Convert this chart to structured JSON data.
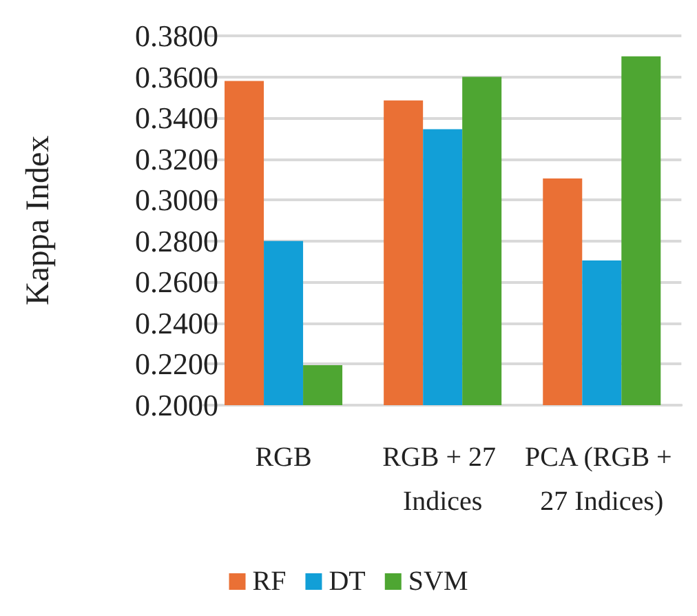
{
  "chart_data": {
    "type": "bar",
    "ylabel": "Kappa Index",
    "categories": [
      "RGB",
      "RGB + 27 Indices",
      "PCA (RGB + 27 Indices)"
    ],
    "series": [
      {
        "name": "RF",
        "color": "#ea7035",
        "values": [
          0.358,
          0.3485,
          0.3105
        ]
      },
      {
        "name": "DT",
        "color": "#129fd7",
        "values": [
          0.28,
          0.3345,
          0.2705
        ]
      },
      {
        "name": "SVM",
        "color": "#4ea632",
        "values": [
          0.2195,
          0.36,
          0.37
        ]
      }
    ],
    "ylim": [
      0.2,
      0.38
    ],
    "yticks": [
      {
        "value": 0.2,
        "label": "0.2000"
      },
      {
        "value": 0.22,
        "label": "0.2200"
      },
      {
        "value": 0.24,
        "label": "0.2400"
      },
      {
        "value": 0.26,
        "label": "0.2600"
      },
      {
        "value": 0.28,
        "label": "0.2800"
      },
      {
        "value": 0.3,
        "label": "0.3000"
      },
      {
        "value": 0.32,
        "label": "0.3200"
      },
      {
        "value": 0.34,
        "label": "0.3400"
      },
      {
        "value": 0.36,
        "label": "0.3600"
      },
      {
        "value": 0.38,
        "label": "0.3800"
      }
    ],
    "grid": "y",
    "legend": "bottom"
  }
}
